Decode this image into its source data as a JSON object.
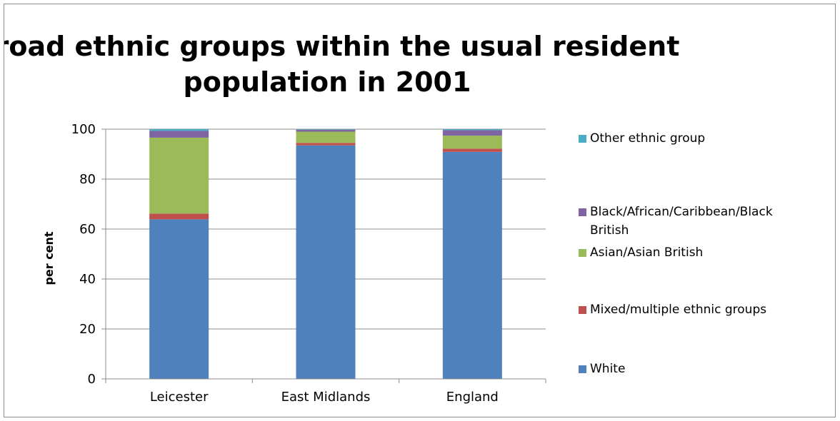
{
  "chart_data": {
    "type": "bar",
    "stacked": true,
    "title_lines": [
      "Broad ethnic groups within the usual resident",
      "population in 2001"
    ],
    "ylabel": "per cent",
    "xlabel": "",
    "ylim": [
      0,
      100
    ],
    "yticks": [
      0,
      20,
      40,
      60,
      80,
      100
    ],
    "grid": true,
    "legend_position": "right",
    "categories": [
      "Leicester",
      "East Midlands",
      "England"
    ],
    "series": [
      {
        "name": "White",
        "color": "#4F81BD",
        "values": [
          63.9,
          93.5,
          90.9
        ]
      },
      {
        "name": "Mixed/multiple ethnic groups",
        "color": "#C0504D",
        "values": [
          2.3,
          1.0,
          1.3
        ]
      },
      {
        "name": "Asian/Asian British",
        "color": "#9BBB59",
        "values": [
          30.4,
          4.5,
          5.2
        ]
      },
      {
        "name": "Black/African/Caribbean/Black British",
        "color": "#8064A2",
        "values": [
          2.7,
          0.8,
          2.2
        ]
      },
      {
        "name": "Other ethnic group",
        "color": "#4BACC6",
        "values": [
          0.7,
          0.2,
          0.4
        ]
      }
    ]
  }
}
